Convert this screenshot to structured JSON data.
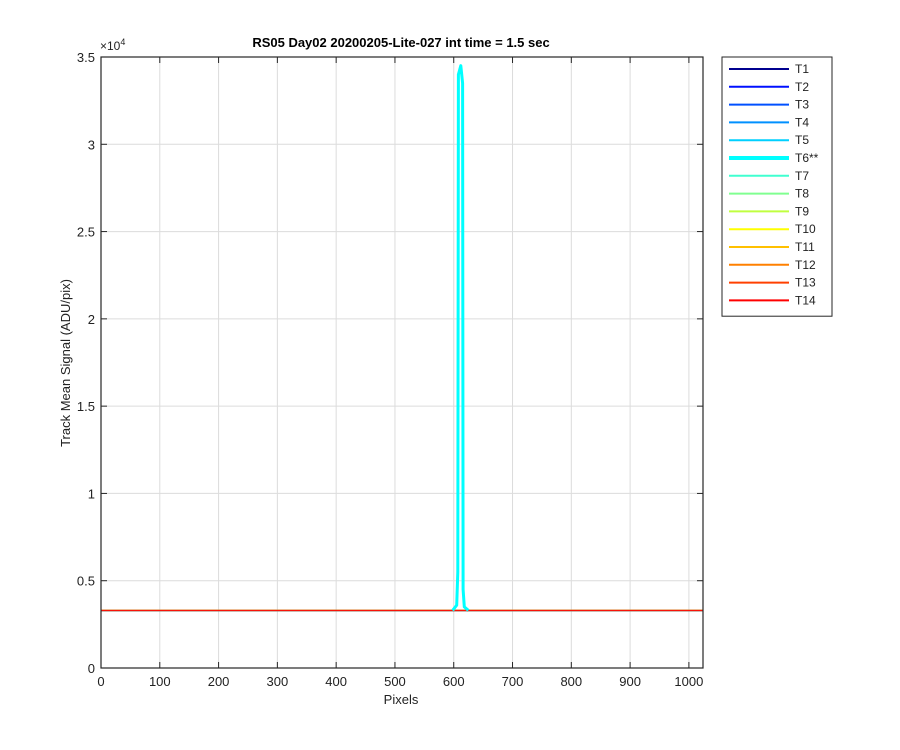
{
  "chart_data": {
    "type": "line",
    "title": "RS05 Day02 20200205-Lite-027 int time = 1.5 sec",
    "xlabel": "Pixels",
    "ylabel": "Track Mean Signal (ADU/pix)",
    "xlim": [
      0,
      1024
    ],
    "ylim": [
      0,
      35000
    ],
    "y_exponent_label": "×10",
    "y_exponent_power": "4",
    "x_ticks": [
      0,
      100,
      200,
      300,
      400,
      500,
      600,
      700,
      800,
      900,
      1000
    ],
    "x_tick_labels": [
      "0",
      "100",
      "200",
      "300",
      "400",
      "500",
      "600",
      "700",
      "800",
      "900",
      "1000"
    ],
    "y_ticks": [
      0,
      5000,
      10000,
      15000,
      20000,
      25000,
      30000,
      35000
    ],
    "y_tick_labels": [
      "0",
      "0.5",
      "1",
      "1.5",
      "2",
      "2.5",
      "3",
      "3.5"
    ],
    "grid": true,
    "legend_position": "outside-top-right",
    "series": [
      {
        "name": "T1",
        "color": "#00008f",
        "baseline": 3300
      },
      {
        "name": "T2",
        "color": "#0010ff",
        "baseline": 3300
      },
      {
        "name": "T3",
        "color": "#0050ff",
        "baseline": 3300
      },
      {
        "name": "T4",
        "color": "#0090ff",
        "baseline": 3300
      },
      {
        "name": "T5",
        "color": "#00d0ff",
        "baseline": 3300
      },
      {
        "name": "T6**",
        "color": "#00ffff",
        "baseline": 3300,
        "highlight": true,
        "peak": {
          "x": [
            598,
            605,
            607,
            608,
            612,
            615,
            616,
            618,
            625
          ],
          "y": [
            3300,
            3600,
            5500,
            34000,
            34500,
            33500,
            4500,
            3500,
            3300
          ]
        }
      },
      {
        "name": "T7",
        "color": "#40ffd0",
        "baseline": 3300
      },
      {
        "name": "T8",
        "color": "#80ff90",
        "baseline": 3300
      },
      {
        "name": "T9",
        "color": "#c0ff40",
        "baseline": 3300
      },
      {
        "name": "T10",
        "color": "#ffff00",
        "baseline": 3300
      },
      {
        "name": "T11",
        "color": "#ffc000",
        "baseline": 3300
      },
      {
        "name": "T12",
        "color": "#ff8000",
        "baseline": 3300
      },
      {
        "name": "T13",
        "color": "#ff4000",
        "baseline": 3300
      },
      {
        "name": "T14",
        "color": "#ff0000",
        "baseline": 3300
      }
    ]
  }
}
